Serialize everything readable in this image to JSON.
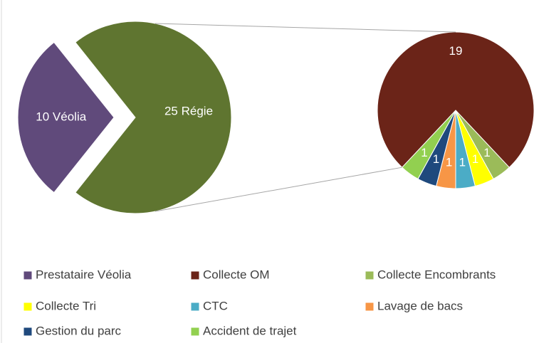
{
  "chart_data": {
    "type": "pie_of_pie",
    "series": [
      {
        "name": "Prestataire Véolia",
        "color": "#604a7b",
        "value": 10,
        "value_label": "10 Véolia"
      },
      {
        "name": "Collecte OM",
        "color": "#6b2418",
        "value": 19
      },
      {
        "name": "Collecte Encombrants",
        "color": "#9bbb59",
        "value": 1
      },
      {
        "name": "Collecte Tri",
        "color": "#ffff00",
        "value": 1
      },
      {
        "name": "CTC",
        "color": "#4bacc6",
        "value": 1
      },
      {
        "name": "Lavage de bacs",
        "color": "#f79646",
        "value": 1
      },
      {
        "name": "Gestion du parc",
        "color": "#1f497d",
        "value": 1
      },
      {
        "name": "Accident de trajet",
        "color": "#92d050",
        "value": 1
      }
    ],
    "aggregate": {
      "value": 25,
      "value_label": "25 Régie",
      "color": "#5f7530"
    }
  }
}
